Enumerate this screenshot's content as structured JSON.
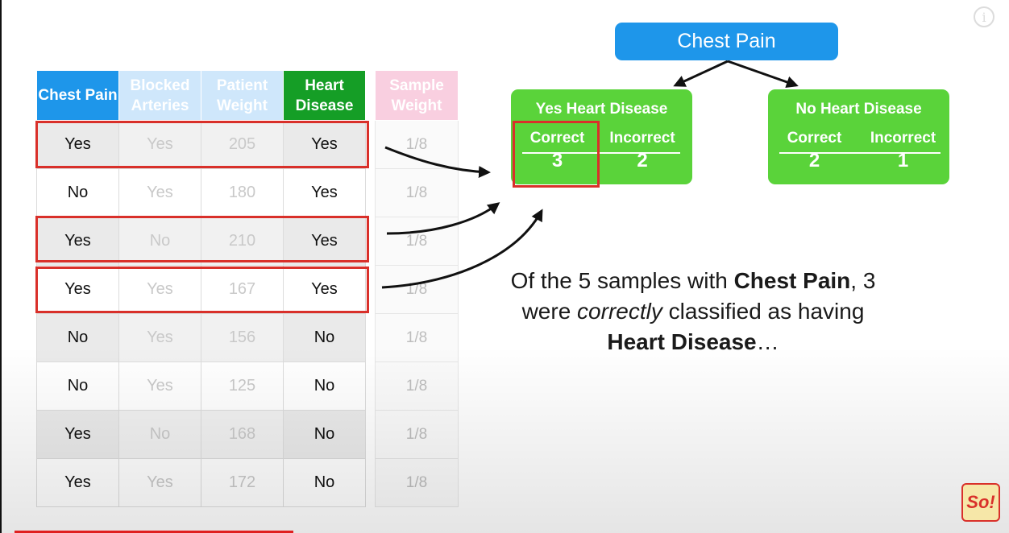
{
  "table": {
    "headers": [
      "Chest Pain",
      "Blocked Arteries",
      "Patient Weight",
      "Heart Disease"
    ],
    "rows": [
      [
        "Yes",
        "Yes",
        "205",
        "Yes"
      ],
      [
        "No",
        "Yes",
        "180",
        "Yes"
      ],
      [
        "Yes",
        "No",
        "210",
        "Yes"
      ],
      [
        "Yes",
        "Yes",
        "167",
        "Yes"
      ],
      [
        "No",
        "Yes",
        "156",
        "No"
      ],
      [
        "No",
        "Yes",
        "125",
        "No"
      ],
      [
        "Yes",
        "No",
        "168",
        "No"
      ],
      [
        "Yes",
        "Yes",
        "172",
        "No"
      ]
    ]
  },
  "sample_weight": {
    "header": "Sample Weight",
    "values": [
      "1/8",
      "1/8",
      "1/8",
      "1/8",
      "1/8",
      "1/8",
      "1/8",
      "1/8"
    ]
  },
  "tree": {
    "root": "Chest Pain",
    "left": {
      "title": "Yes Heart Disease",
      "correct_label": "Correct",
      "incorrect_label": "Incorrect",
      "correct": "3",
      "incorrect": "2"
    },
    "right": {
      "title": "No Heart Disease",
      "correct_label": "Correct",
      "incorrect_label": "Incorrect",
      "correct": "2",
      "incorrect": "1"
    }
  },
  "caption": {
    "p1": "Of the 5 samples with ",
    "b1": "Chest Pain",
    "p2": ", 3 were ",
    "i1": "correctly",
    "p3": " classified as having ",
    "b2": "Heart Disease",
    "p4": "…"
  },
  "icons": {
    "info": "info-icon",
    "logo": "channel-logo"
  },
  "logo_text": "So!",
  "colors": {
    "blue": "#1e96ea",
    "green": "#159e26",
    "leaf_green": "#5ad33a",
    "highlight_red": "#d9302a",
    "pink": "#f9cfe0"
  },
  "video": {
    "progress_fraction": 0.28
  }
}
